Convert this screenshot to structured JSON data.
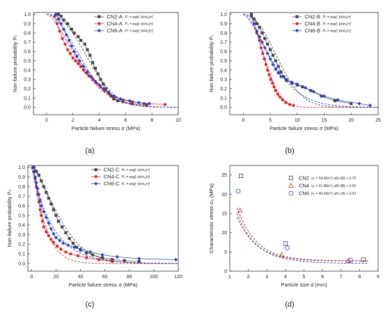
{
  "chart_data": [
    {
      "type": "scatter",
      "panel_label": "(a)",
      "xlabel": "Particle failure stress σ (MPa)",
      "ylabel": "Non-failure probability Pₛ",
      "xlim": [
        -1,
        10
      ],
      "ylim": [
        -0.08,
        1.02
      ],
      "xticks": [
        "0",
        "2",
        "4",
        "6",
        "8",
        "10"
      ],
      "yticks": [
        "0.0",
        "0.1",
        "0.2",
        "0.3",
        "0.4",
        "0.5",
        "0.6",
        "0.7",
        "0.8",
        "0.9",
        "1.0"
      ],
      "legend_position": "top-right",
      "series": [
        {
          "name": "CN2-A",
          "formula": "Pₛ = exp[−(σ/σ₀)ᵐ]",
          "color": "#444444",
          "marker": "square",
          "x": [
            0.9,
            1.1,
            1.3,
            1.6,
            1.9,
            2.1,
            2.4,
            2.6,
            2.9,
            3.1,
            3.3,
            3.5,
            3.7,
            3.9,
            4.1,
            4.3,
            4.5,
            4.7,
            4.9,
            5.1,
            5.4,
            5.8,
            6.5,
            7.6
          ],
          "y": [
            1.0,
            0.98,
            0.94,
            0.9,
            0.84,
            0.8,
            0.76,
            0.72,
            0.68,
            0.62,
            0.56,
            0.48,
            0.42,
            0.36,
            0.3,
            0.25,
            0.2,
            0.16,
            0.12,
            0.09,
            0.07,
            0.06,
            0.04,
            0.02
          ],
          "fit": {
            "sigma0": 3.8,
            "m": 2.3
          }
        },
        {
          "name": "CN4-A",
          "formula": "Pₛ = exp[−(σ/σ₀)ᵐ]",
          "color": "#e41a1c",
          "marker": "circle",
          "x": [
            0.6,
            0.8,
            1.0,
            1.2,
            1.4,
            1.6,
            1.8,
            2.0,
            2.2,
            2.4,
            2.6,
            2.8,
            3.0,
            3.2,
            3.5,
            3.8,
            4.1,
            4.4,
            4.8,
            5.2,
            5.8,
            6.5,
            7.4,
            9.0
          ],
          "y": [
            0.98,
            0.9,
            0.82,
            0.74,
            0.68,
            0.62,
            0.58,
            0.53,
            0.5,
            0.47,
            0.44,
            0.4,
            0.37,
            0.34,
            0.3,
            0.26,
            0.22,
            0.18,
            0.14,
            0.11,
            0.08,
            0.06,
            0.04,
            0.03
          ],
          "fit": {
            "sigma0": 3.0,
            "m": 1.6
          }
        },
        {
          "name": "CN6-A",
          "formula": "Pₛ = exp[−(σ/σ₀)ᵐ]",
          "color": "#1f3fcf",
          "marker": "diamond",
          "x": [
            0.7,
            0.9,
            1.1,
            1.3,
            1.5,
            1.7,
            1.9,
            2.1,
            2.3,
            2.5,
            2.8,
            3.1,
            3.4,
            3.7,
            4.0,
            4.3,
            4.7,
            5.1,
            5.6,
            6.3,
            7.0,
            7.8
          ],
          "y": [
            1.0,
            0.95,
            0.9,
            0.84,
            0.78,
            0.72,
            0.66,
            0.6,
            0.55,
            0.5,
            0.44,
            0.38,
            0.33,
            0.28,
            0.24,
            0.2,
            0.16,
            0.12,
            0.09,
            0.07,
            0.05,
            0.04
          ],
          "fit": {
            "sigma0": 3.3,
            "m": 1.9
          }
        }
      ]
    },
    {
      "type": "scatter",
      "panel_label": "(b)",
      "xlabel": "Particle failure stress σ (MPa)",
      "ylabel": "Non-failure probability Pₛ",
      "xlim": [
        -2.5,
        25
      ],
      "ylim": [
        -0.08,
        1.02
      ],
      "xticks": [
        "0",
        "5",
        "10",
        "15",
        "20",
        "25"
      ],
      "yticks": [
        "0.0",
        "0.1",
        "0.2",
        "0.3",
        "0.4",
        "0.5",
        "0.6",
        "0.7",
        "0.8",
        "0.9",
        "1.0"
      ],
      "legend_position": "top-right",
      "series": [
        {
          "name": "CN2-B",
          "formula": "Pₛ = exp[−(σ/σ₀)ᵐ]",
          "color": "#444444",
          "marker": "square",
          "x": [
            1.5,
            2.0,
            2.5,
            3.0,
            3.5,
            4.0,
            4.5,
            5.0,
            5.5,
            6.0,
            6.5,
            7.0,
            7.5,
            8.0,
            9.0,
            10.0,
            11.0,
            12.5,
            14.5,
            17.0,
            20.0
          ],
          "y": [
            1.0,
            0.95,
            0.9,
            0.86,
            0.8,
            0.74,
            0.68,
            0.62,
            0.56,
            0.5,
            0.44,
            0.38,
            0.33,
            0.29,
            0.26,
            0.24,
            0.22,
            0.18,
            0.12,
            0.07,
            0.04
          ],
          "fit": {
            "sigma0": 7.8,
            "m": 2.2
          }
        },
        {
          "name": "CN4-B",
          "formula": "Pₛ = exp[−(σ/σ₀)ᵐ]",
          "color": "#e41a1c",
          "marker": "circle",
          "x": [
            1.5,
            2.0,
            2.5,
            3.0,
            3.3,
            3.6,
            3.9,
            4.2,
            4.5,
            4.8,
            5.1,
            5.4,
            5.7,
            6.0,
            6.4,
            6.8,
            7.3,
            7.9,
            8.6,
            9.3
          ],
          "y": [
            0.98,
            0.9,
            0.8,
            0.72,
            0.64,
            0.58,
            0.52,
            0.46,
            0.4,
            0.35,
            0.3,
            0.26,
            0.22,
            0.18,
            0.14,
            0.11,
            0.08,
            0.05,
            0.03,
            0.02
          ],
          "fit": {
            "sigma0": 4.9,
            "m": 2.2
          }
        },
        {
          "name": "CN6-B",
          "formula": "Pₛ = exp[−(σ/σ₀)ᵐ]",
          "color": "#1f3fcf",
          "marker": "diamond",
          "x": [
            1.5,
            2.0,
            2.5,
            3.0,
            3.5,
            4.0,
            4.5,
            5.0,
            5.5,
            6.0,
            6.5,
            7.0,
            8.0,
            9.0,
            10.0,
            11.5,
            13.0,
            15.0,
            17.5,
            21.5,
            23.5
          ],
          "y": [
            0.98,
            0.9,
            0.82,
            0.76,
            0.7,
            0.64,
            0.58,
            0.52,
            0.46,
            0.41,
            0.37,
            0.33,
            0.3,
            0.27,
            0.25,
            0.21,
            0.17,
            0.12,
            0.08,
            0.04,
            0.02
          ],
          "fit": {
            "sigma0": 6.8,
            "m": 1.5
          }
        }
      ]
    },
    {
      "type": "scatter",
      "panel_label": "(c)",
      "xlabel": "Particle failure stress σ (MPa)",
      "ylabel": "Non-failure probability Pₛ",
      "xlim": [
        -3,
        120
      ],
      "ylim": [
        -0.08,
        1.02
      ],
      "xticks": [
        "0",
        "20",
        "40",
        "60",
        "80",
        "100",
        "120"
      ],
      "yticks": [
        "0.0",
        "0.1",
        "0.2",
        "0.3",
        "0.4",
        "0.5",
        "0.6",
        "0.7",
        "0.8",
        "0.9",
        "1.0"
      ],
      "legend_position": "top-right",
      "series": [
        {
          "name": "CN2-C",
          "formula": "Pₛ = exp[−(σ/σ₀)ᵐ]",
          "color": "#444444",
          "marker": "square",
          "x": [
            2,
            4,
            6,
            8,
            10,
            12,
            14,
            16,
            18,
            20,
            22,
            25,
            28,
            31,
            34,
            37,
            40,
            45,
            50,
            58,
            66,
            76,
            88
          ],
          "y": [
            1.0,
            0.96,
            0.92,
            0.86,
            0.8,
            0.74,
            0.68,
            0.62,
            0.56,
            0.5,
            0.44,
            0.38,
            0.32,
            0.26,
            0.21,
            0.17,
            0.14,
            0.11,
            0.09,
            0.06,
            0.04,
            0.03,
            0.02
          ],
          "fit": {
            "sigma0": 28,
            "m": 1.5
          }
        },
        {
          "name": "CN4-C",
          "formula": "Pₛ = exp[−(σ/σ₀)ᵐ]",
          "color": "#e41a1c",
          "marker": "circle",
          "x": [
            1,
            2,
            3,
            4,
            5,
            6,
            7,
            8,
            9,
            10,
            12,
            14,
            16,
            18,
            21,
            24,
            28,
            32,
            38,
            45,
            55,
            66
          ],
          "y": [
            1.0,
            0.95,
            0.88,
            0.8,
            0.72,
            0.64,
            0.56,
            0.5,
            0.44,
            0.38,
            0.33,
            0.29,
            0.25,
            0.22,
            0.18,
            0.15,
            0.12,
            0.1,
            0.08,
            0.06,
            0.04,
            0.02
          ],
          "fit": {
            "sigma0": 12,
            "m": 1.2
          }
        },
        {
          "name": "CN6-C",
          "formula": "Pₛ = exp[−(σ/σ₀)ᵐ]",
          "color": "#1f3fcf",
          "marker": "diamond",
          "x": [
            1,
            2,
            3,
            4,
            5,
            6,
            7,
            8,
            10,
            12,
            14,
            16,
            18,
            20,
            23,
            26,
            30,
            35,
            40,
            48,
            58,
            70,
            88,
            118
          ],
          "y": [
            1.0,
            0.96,
            0.9,
            0.84,
            0.78,
            0.72,
            0.66,
            0.6,
            0.54,
            0.48,
            0.42,
            0.36,
            0.31,
            0.27,
            0.24,
            0.21,
            0.19,
            0.17,
            0.15,
            0.12,
            0.09,
            0.07,
            0.05,
            0.04
          ],
          "fit": {
            "sigma0": 18,
            "m": 1.0
          }
        }
      ]
    },
    {
      "type": "scatter",
      "panel_label": "(d)",
      "xlabel": "Particle size d (mm)",
      "ylabel": "Characteristic stress σ₀ (MPa)",
      "xlim": [
        1,
        9
      ],
      "ylim": [
        0,
        27.5
      ],
      "xticks": [
        "1",
        "2",
        "3",
        "4",
        "5",
        "6",
        "7",
        "8",
        "9"
      ],
      "yticks": [
        "0",
        "5",
        "10",
        "15",
        "20",
        "25"
      ],
      "legend_position": "top-right",
      "series": [
        {
          "name": "CN2",
          "formula": "σ₀ = 54.42e^(−d/1.02) + 2.70",
          "color": "#444444",
          "marker": "open-square",
          "x": [
            1.6,
            4.0,
            8.2
          ],
          "y": [
            24.8,
            7.2,
            3.0
          ],
          "fit": {
            "a": 54.42,
            "b": 1.02,
            "c": 2.7
          }
        },
        {
          "name": "CN4",
          "formula": "σ₀ = 51.86e^(−d/0.98) + 2.65",
          "color": "#e41a1c",
          "marker": "open-triangle",
          "x": [
            1.55,
            3.8,
            7.4
          ],
          "y": [
            15.8,
            4.2,
            2.7
          ],
          "fit": {
            "a": 51.86,
            "b": 0.98,
            "c": 2.65
          }
        },
        {
          "name": "CN6",
          "formula": "σ₀ = 40.65e^(−d/1.14) + 2.03",
          "color": "#1f3fcf",
          "marker": "open-circle",
          "x": [
            1.45,
            4.1,
            7.5
          ],
          "y": [
            20.8,
            6.1,
            2.9
          ],
          "fit": {
            "a": 40.65,
            "b": 1.14,
            "c": 2.03
          }
        }
      ]
    }
  ]
}
